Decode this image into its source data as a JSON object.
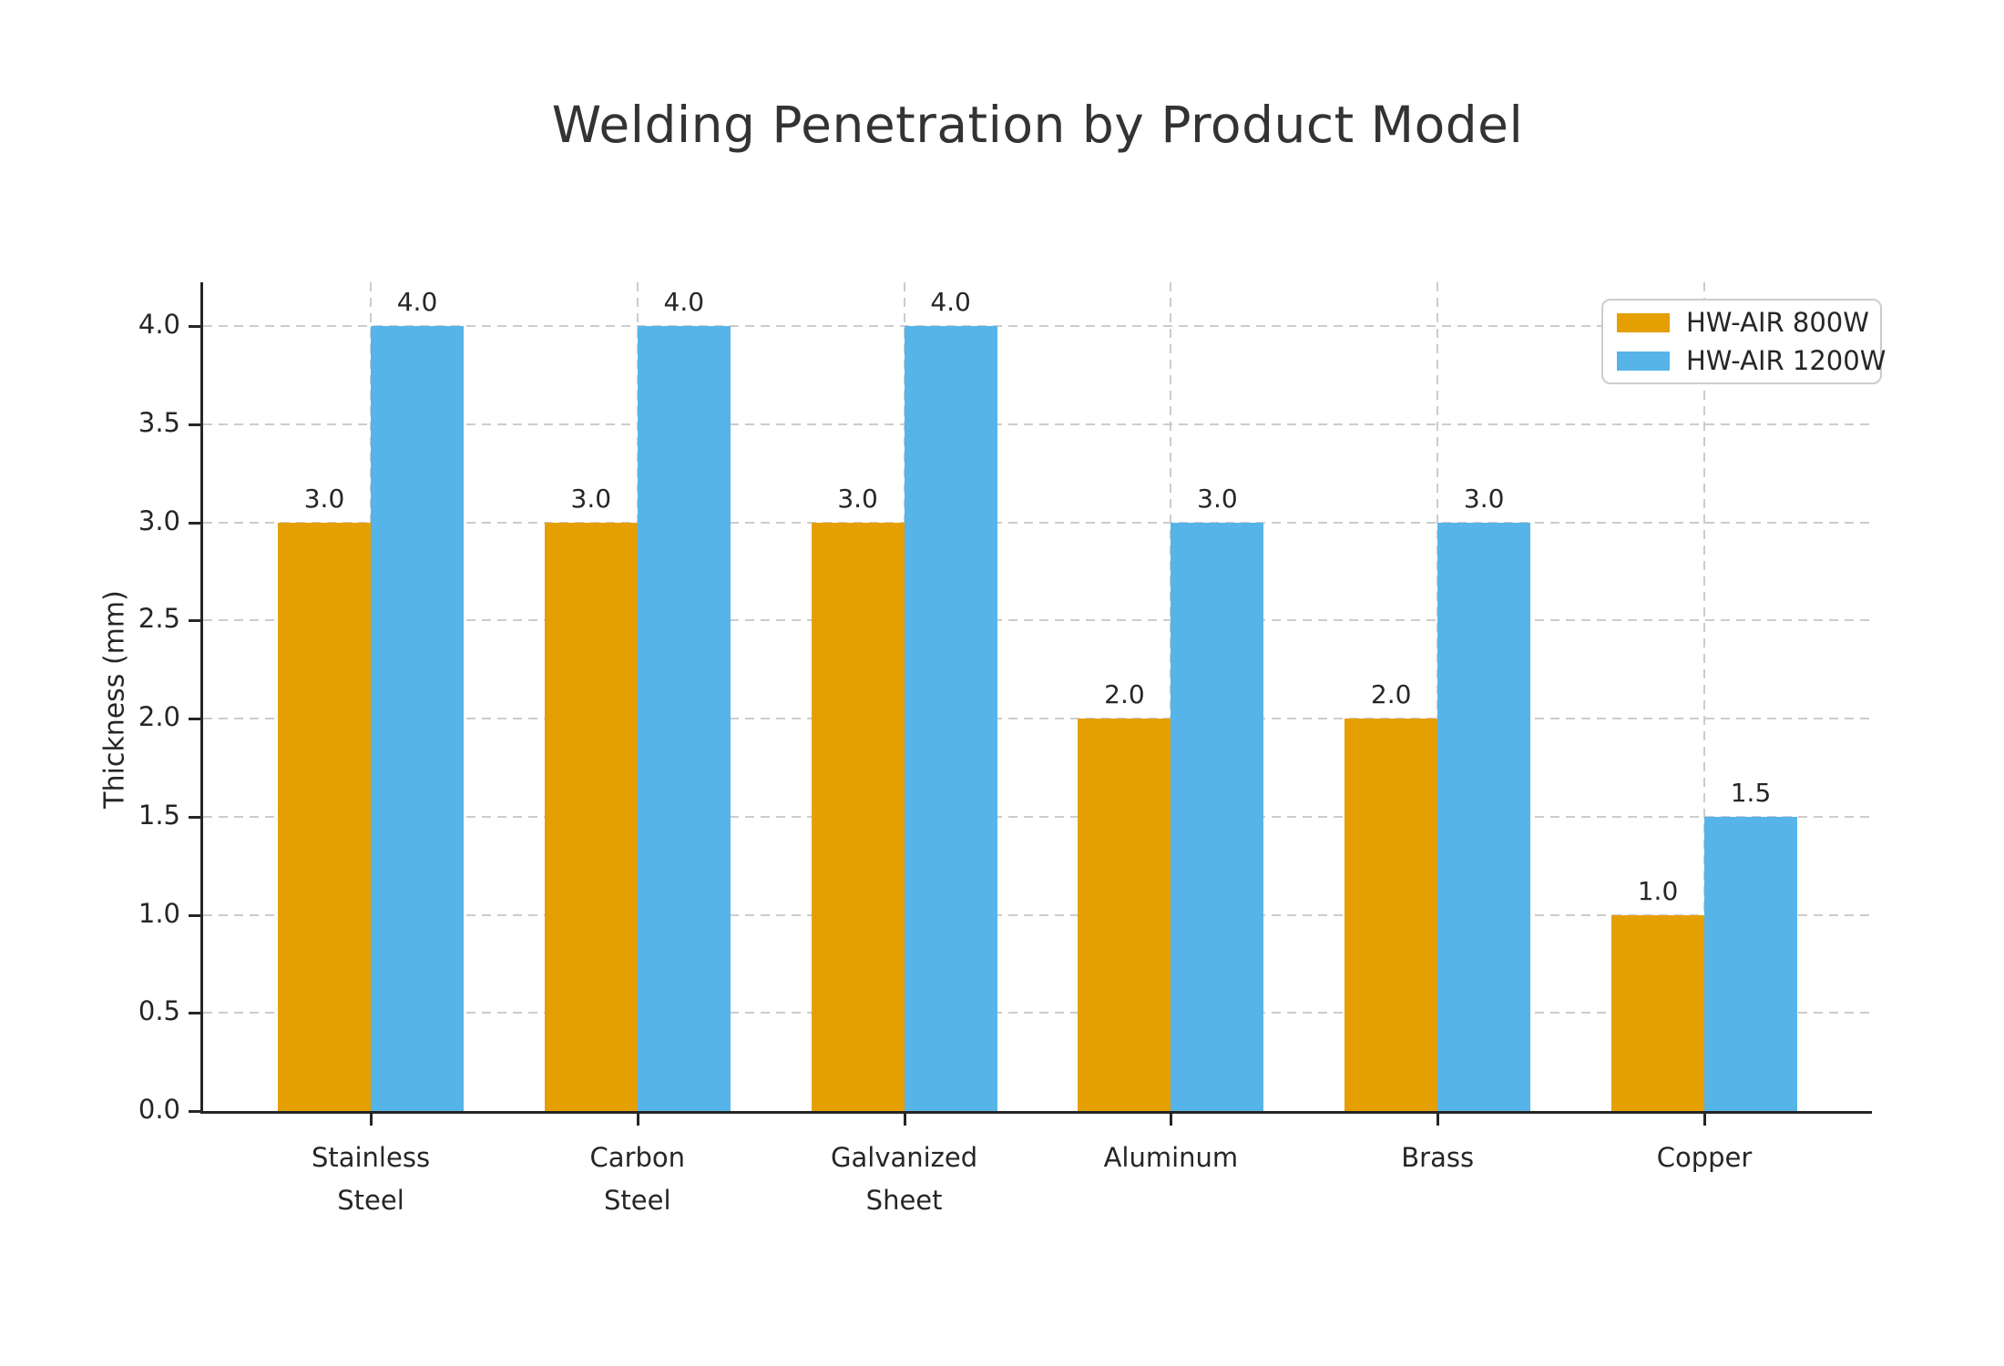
{
  "title": "Welding Penetration by Product Model",
  "chart_data": {
    "type": "bar",
    "title": "Welding Penetration by Product Model",
    "categories": [
      "Stainless\nSteel",
      "Carbon\nSteel",
      "Galvanized\nSheet",
      "Aluminum",
      "Brass",
      "Copper"
    ],
    "series": [
      {
        "name": "HW-AIR 800W",
        "color": "#E69F00",
        "values": [
          3.0,
          3.0,
          3.0,
          2.0,
          2.0,
          1.0
        ]
      },
      {
        "name": "HW-AIR 1200W",
        "color": "#56B4E9",
        "values": [
          4.0,
          4.0,
          4.0,
          3.0,
          3.0,
          1.5
        ]
      }
    ],
    "xlabel": "",
    "ylabel": "Thickness (mm)",
    "ylim": [
      0,
      4.22
    ],
    "yticks": [
      0.0,
      0.5,
      1.0,
      1.5,
      2.0,
      2.5,
      3.0,
      3.5,
      4.0
    ],
    "ytick_labels": [
      "0.0",
      "0.5",
      "1.0",
      "1.5",
      "2.0",
      "2.5",
      "3.0",
      "3.5",
      "4.0"
    ],
    "value_labels": true,
    "value_label_format": "one_decimal",
    "grid": "both-dashed",
    "grid_color": "#cccccc",
    "legend_position": "upper right",
    "axis_color": "#262626",
    "title_color": "#333333"
  }
}
